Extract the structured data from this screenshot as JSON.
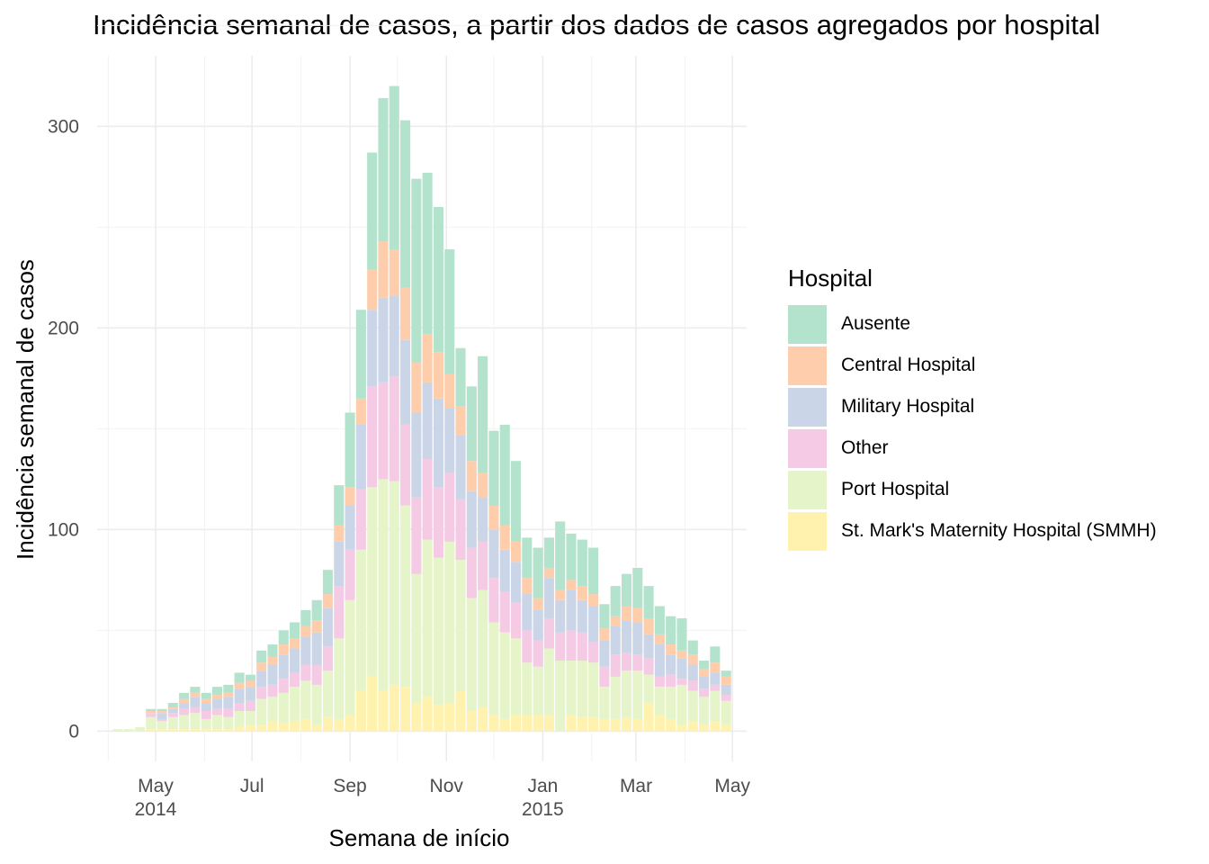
{
  "chart_data": {
    "type": "bar",
    "stacked": true,
    "title": "Incidência semanal de casos, a partir dos dados de casos agregados por hospital",
    "xlabel": "Semana de início",
    "ylabel": "Incidência semanal de casos",
    "ylim": [
      -15,
      335
    ],
    "y_ticks": [
      0,
      100,
      200,
      300
    ],
    "x_ticks": [
      {
        "date": "2014-05-01",
        "label": "May",
        "sublabel": "2014"
      },
      {
        "date": "2014-07-01",
        "label": "Jul",
        "sublabel": ""
      },
      {
        "date": "2014-09-01",
        "label": "Sep",
        "sublabel": ""
      },
      {
        "date": "2014-11-01",
        "label": "Nov",
        "sublabel": ""
      },
      {
        "date": "2015-01-01",
        "label": "Jan",
        "sublabel": "2015"
      },
      {
        "date": "2015-03-01",
        "label": "Mar",
        "sublabel": ""
      },
      {
        "date": "2015-05-01",
        "label": "May",
        "sublabel": ""
      }
    ],
    "x_minor_ticks": [
      "2014-04-01",
      "2014-06-01",
      "2014-08-01",
      "2014-10-01",
      "2014-12-01",
      "2015-02-01",
      "2015-04-01"
    ],
    "xlim": [
      "2014-03-25",
      "2015-05-10"
    ],
    "grid": true,
    "legend_title": "Hospital",
    "legend_position": "right",
    "weeks": [
      "2014-04-07",
      "2014-04-14",
      "2014-04-21",
      "2014-04-28",
      "2014-05-05",
      "2014-05-12",
      "2014-05-19",
      "2014-05-26",
      "2014-06-02",
      "2014-06-09",
      "2014-06-16",
      "2014-06-23",
      "2014-06-30",
      "2014-07-07",
      "2014-07-14",
      "2014-07-21",
      "2014-07-28",
      "2014-08-04",
      "2014-08-11",
      "2014-08-18",
      "2014-08-25",
      "2014-09-01",
      "2014-09-08",
      "2014-09-15",
      "2014-09-22",
      "2014-09-29",
      "2014-10-06",
      "2014-10-13",
      "2014-10-20",
      "2014-10-27",
      "2014-11-03",
      "2014-11-10",
      "2014-11-17",
      "2014-11-24",
      "2014-12-01",
      "2014-12-08",
      "2014-12-15",
      "2014-12-22",
      "2014-12-29",
      "2015-01-05",
      "2015-01-12",
      "2015-01-19",
      "2015-01-26",
      "2015-02-02",
      "2015-02-09",
      "2015-02-16",
      "2015-02-23",
      "2015-03-02",
      "2015-03-09",
      "2015-03-16",
      "2015-03-23",
      "2015-03-30",
      "2015-04-06",
      "2015-04-13",
      "2015-04-20",
      "2015-04-27"
    ],
    "series": [
      {
        "name": "St. Mark's Maternity Hospital (SMMH)",
        "color": "#FFF2AE",
        "values": [
          0,
          0,
          0,
          1,
          1,
          1,
          1,
          1,
          1,
          1,
          1,
          2,
          3,
          3,
          5,
          4,
          5,
          6,
          3,
          7,
          6,
          8,
          20,
          27,
          20,
          23,
          22,
          14,
          17,
          13,
          14,
          20,
          10,
          12,
          8,
          6,
          8,
          8,
          8,
          8,
          0,
          8,
          7,
          7,
          6,
          6,
          7,
          6,
          14,
          8,
          6,
          3,
          5,
          3,
          5,
          3
        ]
      },
      {
        "name": "Port Hospital",
        "color": "#E6F5C9",
        "values": [
          1,
          1,
          2,
          6,
          4,
          6,
          7,
          8,
          5,
          7,
          6,
          8,
          7,
          13,
          12,
          15,
          17,
          19,
          20,
          23,
          40,
          57,
          70,
          94,
          105,
          101,
          90,
          64,
          78,
          73,
          80,
          65,
          56,
          58,
          46,
          43,
          38,
          26,
          24,
          33,
          35,
          27,
          28,
          27,
          16,
          21,
          23,
          24,
          14,
          14,
          16,
          20,
          15,
          14,
          15,
          12
        ]
      },
      {
        "name": "Other",
        "color": "#F4CAE4",
        "values": [
          0,
          0,
          0,
          2,
          1,
          2,
          3,
          3,
          4,
          3,
          4,
          4,
          5,
          6,
          6,
          7,
          7,
          8,
          10,
          12,
          26,
          25,
          30,
          50,
          48,
          52,
          40,
          38,
          40,
          35,
          34,
          30,
          25,
          24,
          22,
          20,
          18,
          16,
          13,
          15,
          14,
          15,
          14,
          10,
          10,
          11,
          9,
          8,
          8,
          5,
          6,
          3,
          5,
          4,
          3,
          3
        ]
      },
      {
        "name": "Military Hospital",
        "color": "#CBD5E8",
        "values": [
          0,
          0,
          0,
          0,
          3,
          2,
          3,
          5,
          4,
          5,
          6,
          7,
          7,
          8,
          10,
          12,
          12,
          14,
          16,
          19,
          22,
          22,
          32,
          38,
          42,
          40,
          42,
          42,
          38,
          44,
          32,
          32,
          28,
          22,
          24,
          21,
          20,
          18,
          15,
          20,
          16,
          20,
          16,
          18,
          13,
          14,
          16,
          16,
          12,
          16,
          10,
          10,
          8,
          6,
          6,
          5
        ]
      },
      {
        "name": "Central Hospital",
        "color": "#FDCDAC",
        "values": [
          0,
          0,
          0,
          1,
          1,
          1,
          2,
          2,
          2,
          2,
          2,
          3,
          3,
          4,
          4,
          5,
          5,
          5,
          6,
          7,
          8,
          9,
          13,
          20,
          28,
          23,
          26,
          25,
          24,
          23,
          17,
          14,
          15,
          12,
          12,
          12,
          10,
          8,
          6,
          5,
          5,
          5,
          7,
          6,
          6,
          5,
          7,
          7,
          8,
          5,
          5,
          4,
          5,
          4,
          5,
          4
        ]
      },
      {
        "name": "Ausente",
        "color": "#B3E2CD",
        "values": [
          0,
          0,
          0,
          1,
          1,
          2,
          3,
          3,
          3,
          4,
          4,
          5,
          3,
          6,
          6,
          7,
          8,
          8,
          10,
          12,
          20,
          37,
          44,
          58,
          71,
          81,
          83,
          91,
          80,
          72,
          62,
          29,
          37,
          58,
          37,
          50,
          40,
          20,
          25,
          15,
          34,
          23,
          23,
          23,
          12,
          15,
          16,
          20,
          16,
          14,
          14,
          16,
          7,
          4,
          8,
          3
        ]
      }
    ]
  }
}
